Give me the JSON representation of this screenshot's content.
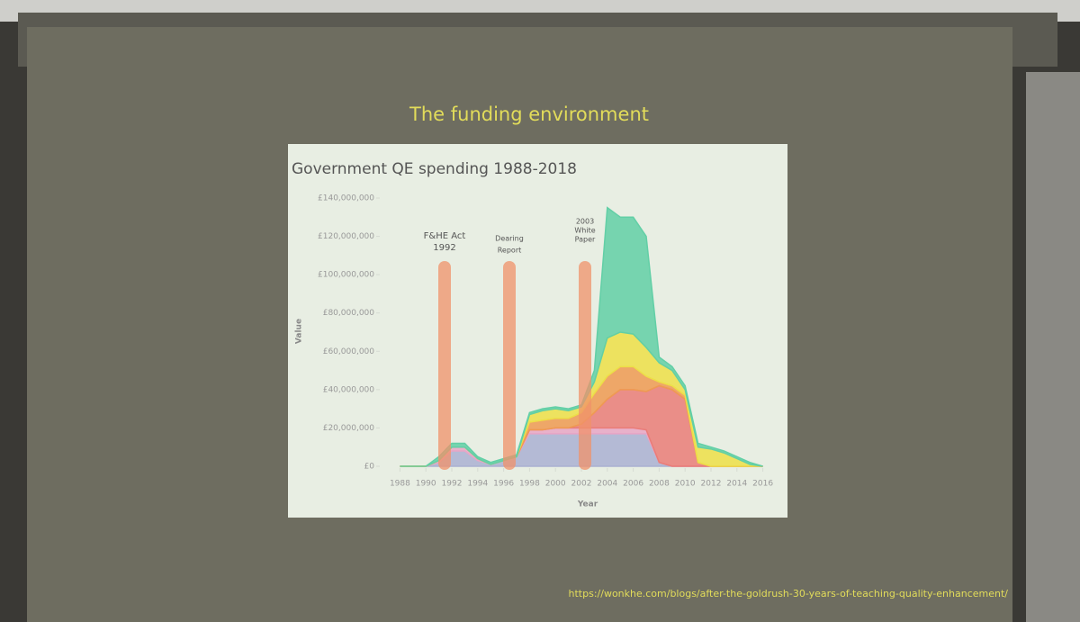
{
  "slide_title": "The funding environment",
  "source_url": "https://wonkhe.com/blogs/after-the-goldrush-30-years-of-teaching-quality-enhancement/",
  "chart_data": {
    "type": "stacked-area",
    "title": "Government QE spending 1988-2018",
    "x_label": "Year",
    "y_label": "Value",
    "x": [
      1988,
      1989,
      1990,
      1991,
      1992,
      1993,
      1994,
      1995,
      1996,
      1997,
      1998,
      1999,
      2000,
      2001,
      2002,
      2003,
      2004,
      2005,
      2006,
      2007,
      2008,
      2009,
      2010,
      2011,
      2012,
      2013,
      2014,
      2015,
      2016
    ],
    "series": [
      {
        "color": "#aab0d2",
        "values": [
          0,
          0,
          0,
          2000000,
          8000000,
          8000000,
          3000000,
          1000000,
          3000000,
          5000000,
          17000000,
          17000000,
          17000000,
          17000000,
          17000000,
          17000000,
          17000000,
          17000000,
          17000000,
          17000000,
          2000000,
          0,
          0,
          0,
          0,
          0,
          0,
          0,
          0
        ]
      },
      {
        "color": "#e8a6c6",
        "values": [
          0,
          0,
          0,
          1000000,
          2000000,
          2000000,
          1000000,
          0,
          0,
          0,
          2000000,
          2000000,
          3000000,
          3000000,
          3000000,
          3000000,
          3000000,
          3000000,
          3000000,
          2000000,
          0,
          0,
          0,
          0,
          0,
          0,
          0,
          0,
          0
        ]
      },
      {
        "color": "#ea7d78",
        "values": [
          0,
          0,
          0,
          0,
          0,
          0,
          0,
          0,
          0,
          0,
          0,
          0,
          0,
          0,
          2000000,
          8000000,
          15000000,
          20000000,
          20000000,
          20000000,
          40000000,
          40000000,
          35000000,
          2000000,
          0,
          0,
          0,
          0,
          0
        ]
      },
      {
        "color": "#ef9a52",
        "values": [
          0,
          0,
          0,
          0,
          0,
          0,
          0,
          0,
          0,
          0,
          4000000,
          5000000,
          5000000,
          5000000,
          6000000,
          10000000,
          12000000,
          12000000,
          12000000,
          8000000,
          2000000,
          2000000,
          2000000,
          0,
          0,
          0,
          0,
          0,
          0
        ]
      },
      {
        "color": "#eddf48",
        "values": [
          0,
          0,
          0,
          0,
          0,
          0,
          0,
          0,
          0,
          0,
          4000000,
          5000000,
          5000000,
          4000000,
          3000000,
          6000000,
          20000000,
          18000000,
          17000000,
          15000000,
          10000000,
          8000000,
          3000000,
          8000000,
          9000000,
          7000000,
          4000000,
          1000000,
          0
        ]
      },
      {
        "color": "#62cfa6",
        "values": [
          0,
          0,
          0,
          2000000,
          2000000,
          2000000,
          1000000,
          1000000,
          1000000,
          1000000,
          1000000,
          1000000,
          1000000,
          1000000,
          1000000,
          6000000,
          68000000,
          60000000,
          61000000,
          58000000,
          3000000,
          2000000,
          2000000,
          2000000,
          1000000,
          1000000,
          1000000,
          1000000,
          0
        ]
      }
    ],
    "xlim": [
      1987,
      2017
    ],
    "xticks": [
      1988,
      1990,
      1992,
      1994,
      1996,
      1998,
      2000,
      2002,
      2004,
      2006,
      2008,
      2010,
      2012,
      2014,
      2016
    ],
    "ylim": [
      0,
      140000000
    ],
    "yticks": [
      {
        "value": 0,
        "label": "£0"
      },
      {
        "value": 20000000,
        "label": "£20,000,000"
      },
      {
        "value": 40000000,
        "label": "£40,000,000"
      },
      {
        "value": 60000000,
        "label": "£60,000,000"
      },
      {
        "value": 80000000,
        "label": "£80,000,000"
      },
      {
        "value": 100000000,
        "label": "£100,000,000"
      },
      {
        "value": 120000000,
        "label": "£120,000,000"
      },
      {
        "value": 140000000,
        "label": "£140,000,000"
      }
    ],
    "annotations": [
      {
        "lines": [
          "F&HE Act",
          "1992"
        ]
      },
      {
        "lines": [
          "Dearing",
          "Report"
        ]
      },
      {
        "lines": [
          "2003",
          "White",
          "Paper"
        ]
      }
    ]
  }
}
